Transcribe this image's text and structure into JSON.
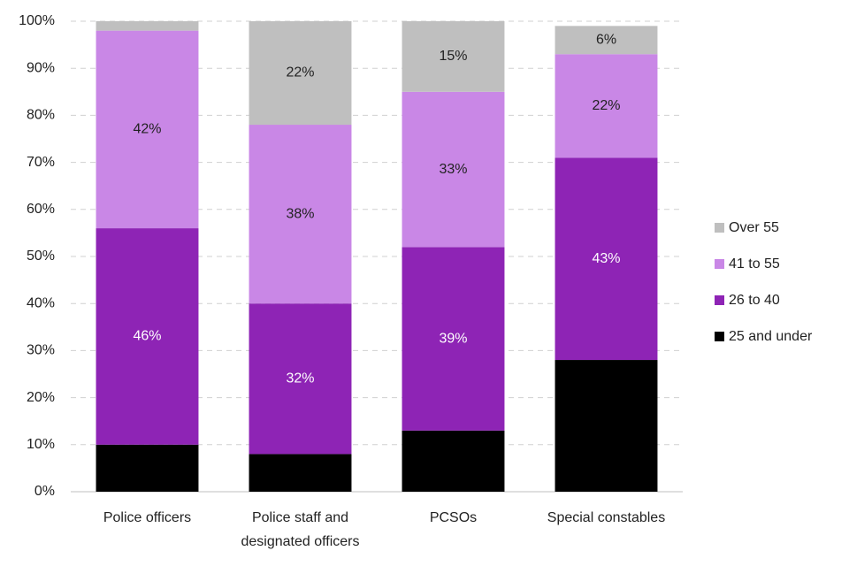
{
  "chart_data": {
    "type": "stacked_bar",
    "categories": [
      "Police officers",
      "Police staff and designated officers",
      "PCSOs",
      "Special constables"
    ],
    "series": [
      {
        "name": "25 and under",
        "color": "#000000",
        "values": [
          10,
          8,
          13,
          28
        ],
        "value_labels": [
          null,
          null,
          null,
          null
        ]
      },
      {
        "name": "26 to 40",
        "color": "#8e24b5",
        "values": [
          46,
          32,
          39,
          43
        ],
        "value_labels": [
          "46%",
          "32%",
          "39%",
          "43%"
        ]
      },
      {
        "name": "41 to 55",
        "color": "#c987e6",
        "values": [
          42,
          38,
          33,
          22
        ],
        "value_labels": [
          "42%",
          "38%",
          "33%",
          "22%"
        ]
      },
      {
        "name": "Over 55",
        "color": "#bfbfbf",
        "values": [
          2,
          22,
          15,
          6
        ],
        "value_labels": [
          null,
          "22%",
          "15%",
          "6%"
        ]
      }
    ],
    "ylim": [
      0,
      100
    ],
    "yticks": [
      {
        "value": 0,
        "label": "0%"
      },
      {
        "value": 10,
        "label": "10%"
      },
      {
        "value": 20,
        "label": "20%"
      },
      {
        "value": 30,
        "label": "30%"
      },
      {
        "value": 40,
        "label": "40%"
      },
      {
        "value": 50,
        "label": "50%"
      },
      {
        "value": 60,
        "label": "60%"
      },
      {
        "value": 70,
        "label": "70%"
      },
      {
        "value": 80,
        "label": "80%"
      },
      {
        "value": 90,
        "label": "90%"
      },
      {
        "value": 100,
        "label": "100%"
      }
    ],
    "grid": true,
    "legend": "right"
  }
}
